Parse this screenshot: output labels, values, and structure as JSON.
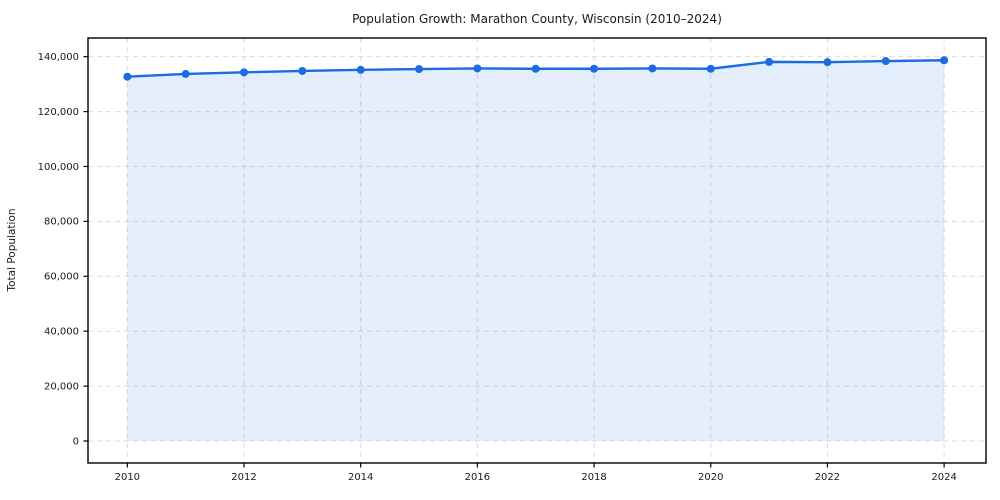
{
  "chart_data": {
    "type": "area",
    "title": "Population Growth: Marathon County, Wisconsin (2010–2024)",
    "xlabel": "",
    "ylabel": "Total Population",
    "x": [
      2010,
      2011,
      2012,
      2013,
      2014,
      2015,
      2016,
      2017,
      2018,
      2019,
      2020,
      2021,
      2022,
      2023,
      2024
    ],
    "series": [
      {
        "name": "Total Population",
        "values": [
          132700,
          133700,
          134300,
          134800,
          135200,
          135500,
          135700,
          135600,
          135600,
          135700,
          135600,
          138100,
          138000,
          138400,
          138700
        ]
      }
    ],
    "xticks": {
      "values": [
        2010,
        2012,
        2014,
        2016,
        2018,
        2020,
        2022,
        2024
      ],
      "labels": [
        "2010",
        "2012",
        "2014",
        "2016",
        "2018",
        "2020",
        "2022",
        "2024"
      ]
    },
    "yticks": {
      "values": [
        0,
        20000,
        40000,
        60000,
        80000,
        100000,
        120000,
        140000
      ],
      "labels": [
        "0",
        "20,000",
        "40,000",
        "60,000",
        "80,000",
        "100,000",
        "120,000",
        "140,000"
      ]
    },
    "xlim": [
      2009.326,
      2024.718
    ],
    "ylim": [
      -8014,
      146800
    ],
    "grid": true,
    "legend": false,
    "marker": "circle",
    "colors": {
      "line": "#1a6ce0",
      "fill": "rgba(26, 108, 224, 0.12)",
      "grid": "#dcdcdc",
      "spine": "#000000",
      "text": "#1a1a1a"
    }
  }
}
